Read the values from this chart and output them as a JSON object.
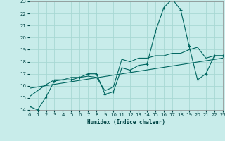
{
  "xlabel": "Humidex (Indice chaleur)",
  "bg_color": "#c8ecea",
  "grid_color": "#a8d8d4",
  "line_color": "#006660",
  "xlim": [
    0,
    23
  ],
  "ylim": [
    14,
    23
  ],
  "yticks": [
    14,
    15,
    16,
    17,
    18,
    19,
    20,
    21,
    22,
    23
  ],
  "xticks": [
    0,
    1,
    2,
    3,
    4,
    5,
    6,
    7,
    8,
    9,
    10,
    11,
    12,
    13,
    14,
    15,
    16,
    17,
    18,
    19,
    20,
    21,
    22,
    23
  ],
  "line1_x": [
    0,
    1,
    2,
    3,
    4,
    5,
    6,
    7,
    8,
    9,
    10,
    11,
    12,
    13,
    14,
    15,
    16,
    17,
    18,
    19,
    20,
    21,
    22,
    23
  ],
  "line1_y": [
    14.3,
    14.0,
    15.1,
    16.4,
    16.5,
    16.5,
    16.7,
    17.0,
    17.0,
    15.3,
    15.5,
    17.5,
    17.3,
    17.7,
    17.8,
    20.5,
    22.5,
    23.2,
    22.3,
    19.3,
    16.5,
    17.0,
    18.5,
    18.5
  ],
  "line2_x": [
    0,
    1,
    2,
    3,
    4,
    5,
    6,
    7,
    8,
    9,
    10,
    11,
    12,
    13,
    14,
    15,
    16,
    17,
    18,
    19,
    20,
    21,
    22,
    23
  ],
  "line2_y": [
    15.1,
    15.6,
    16.1,
    16.5,
    16.5,
    16.7,
    16.7,
    16.8,
    16.7,
    15.6,
    15.9,
    18.2,
    18.0,
    18.3,
    18.3,
    18.5,
    18.5,
    18.7,
    18.7,
    19.0,
    19.2,
    18.3,
    18.5,
    18.5
  ],
  "line3_x": [
    0,
    23
  ],
  "line3_y": [
    15.8,
    18.3
  ]
}
